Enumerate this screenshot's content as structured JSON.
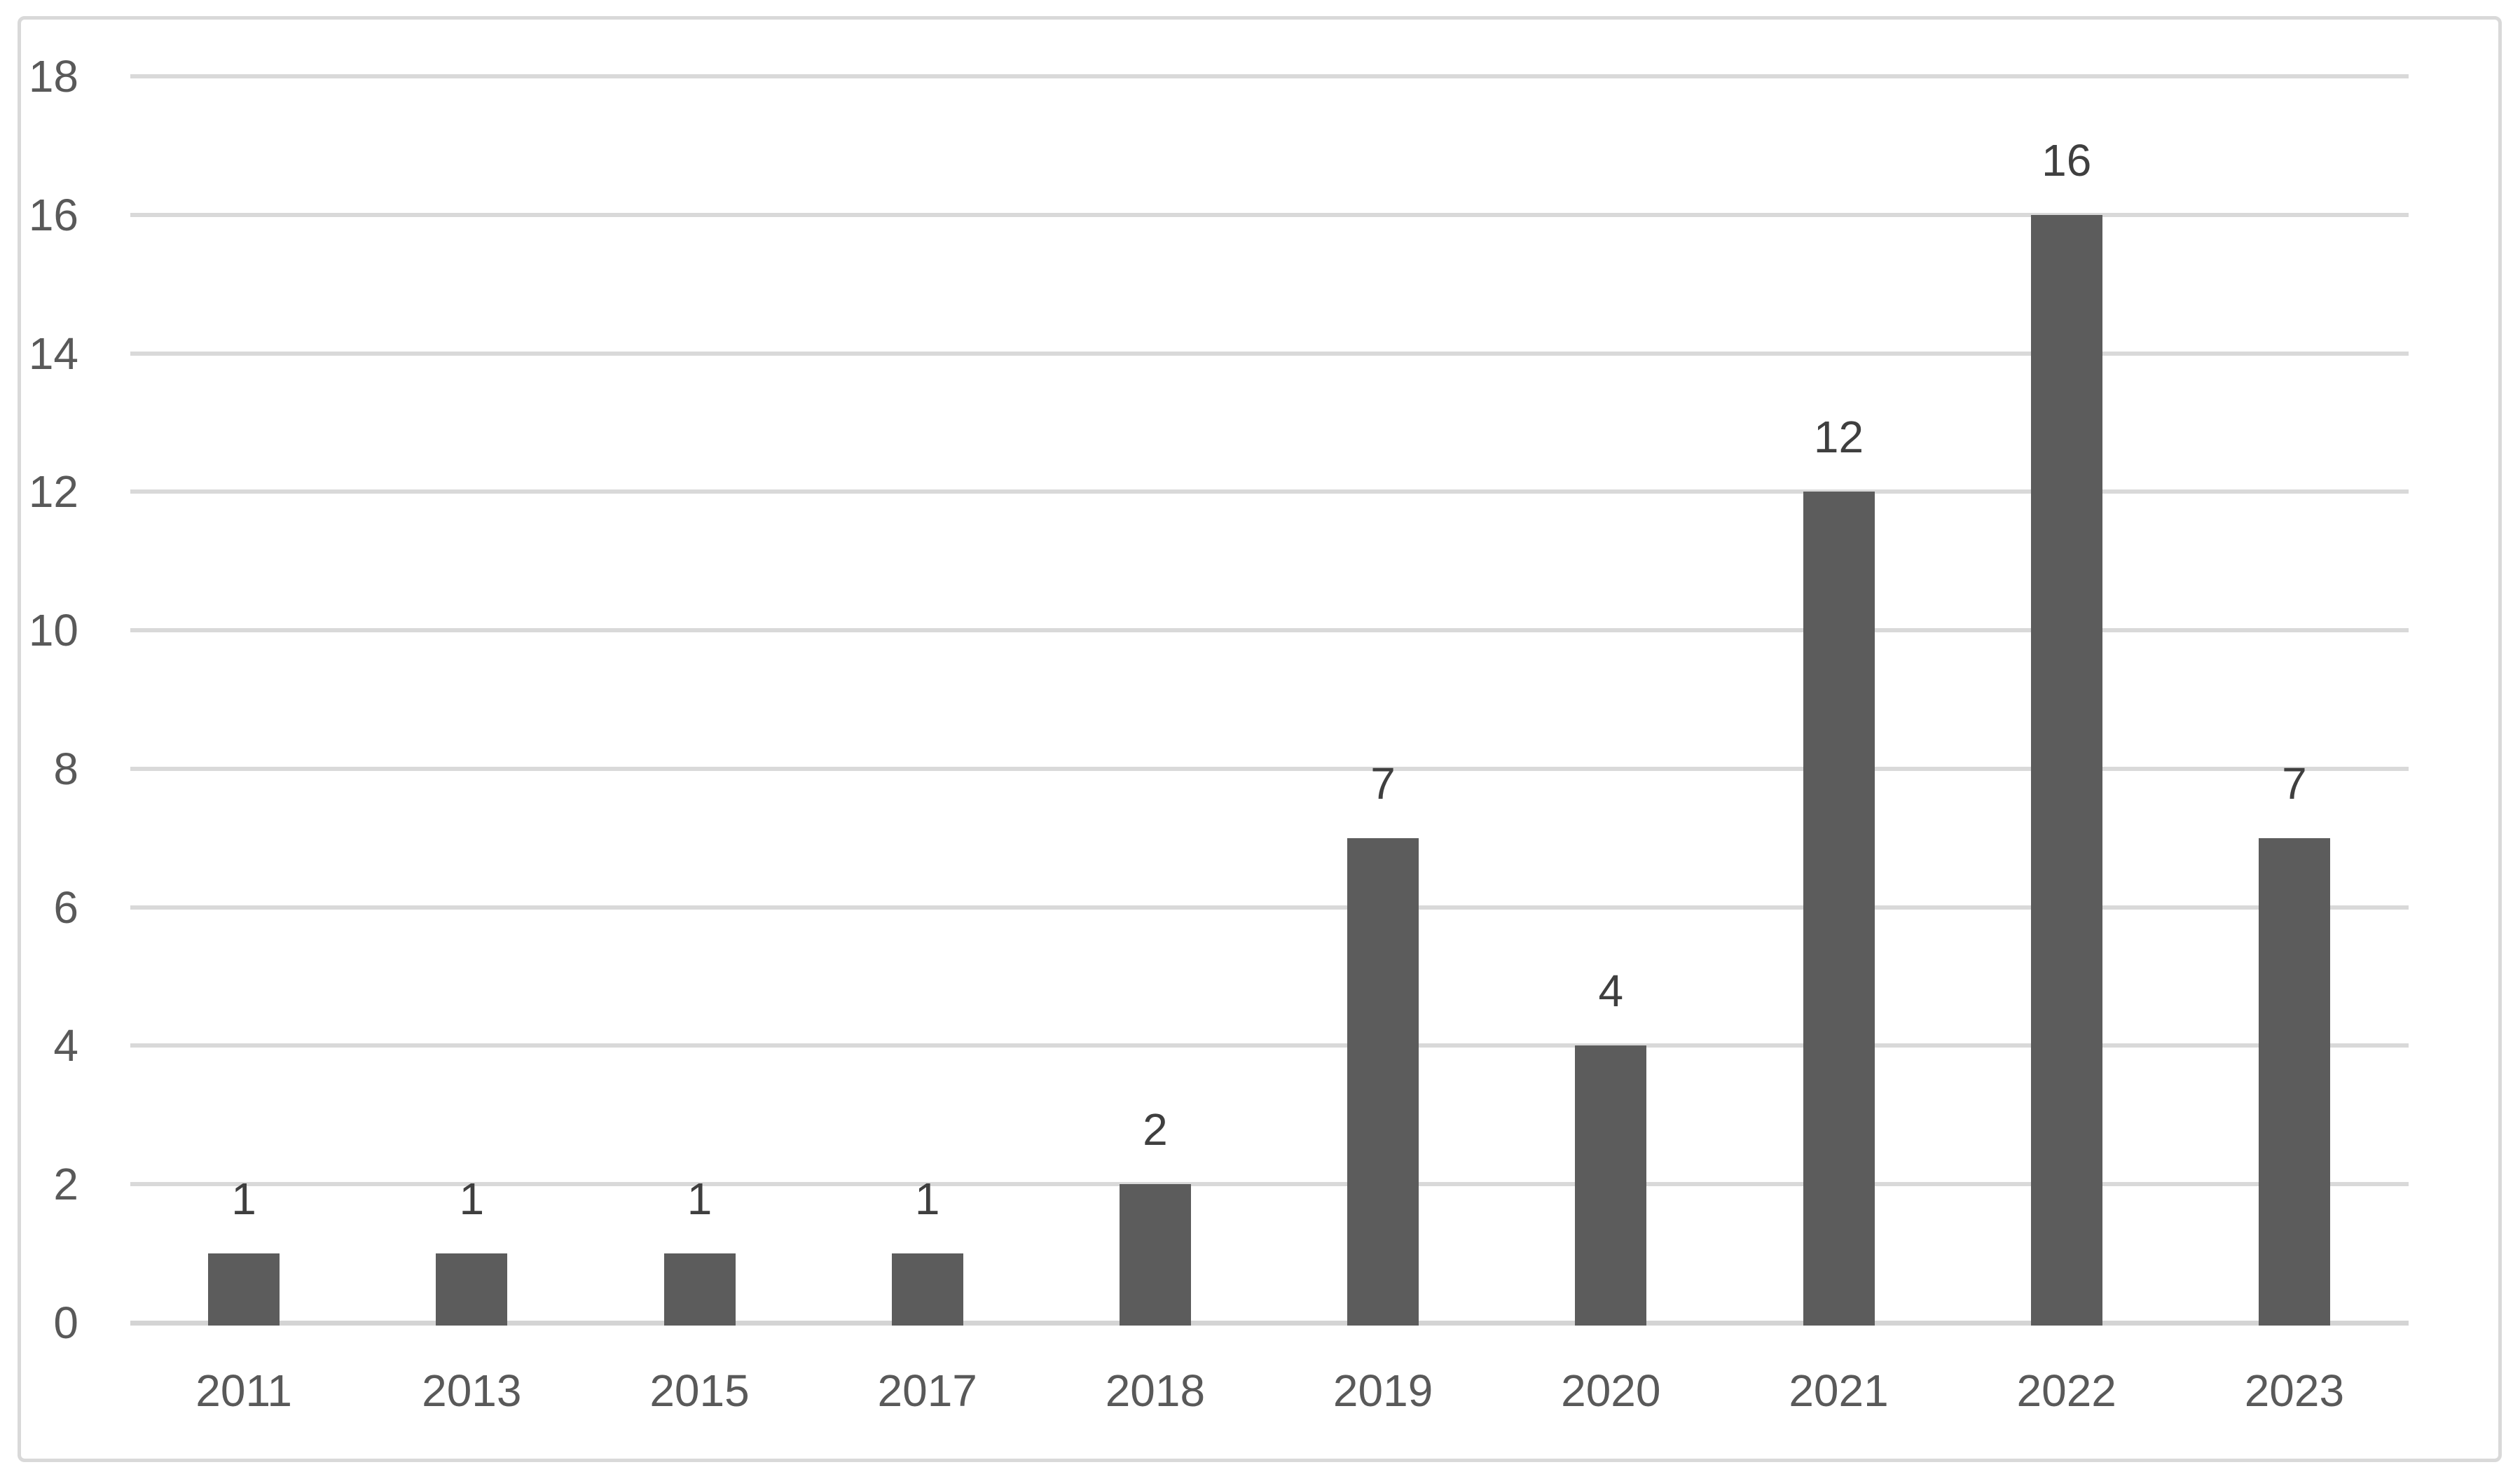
{
  "chart_data": {
    "type": "bar",
    "categories": [
      "2011",
      "2013",
      "2015",
      "2017",
      "2018",
      "2019",
      "2020",
      "2021",
      "2022",
      "2023"
    ],
    "values": [
      1,
      1,
      1,
      1,
      2,
      7,
      4,
      12,
      16,
      7
    ],
    "data_labels": [
      "1",
      "1",
      "1",
      "1",
      "2",
      "7",
      "4",
      "12",
      "16",
      "7"
    ],
    "yticks": [
      0,
      2,
      4,
      6,
      8,
      10,
      12,
      14,
      16,
      18
    ],
    "ylim": [
      0,
      18
    ],
    "title": "",
    "xlabel": "",
    "ylabel": "",
    "grid": true,
    "legend": false,
    "colors": {
      "bar_fill": "#5C5C5C",
      "gridline": "#D9D9D9",
      "axis_line": "#D4D4D4",
      "tick_label": "#595959",
      "data_label": "#3F3F3F",
      "chart_border": "#D9D9D9",
      "background": "#FFFFFF"
    }
  }
}
